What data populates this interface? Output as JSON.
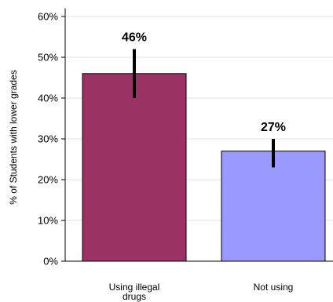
{
  "chart_data": {
    "type": "bar",
    "title": "",
    "xlabel": "",
    "ylabel": "% of Students with lower grades",
    "categories": [
      "Using illegal drugs",
      "Not using"
    ],
    "category_lines": [
      [
        "Using illegal",
        "drugs"
      ],
      [
        "Not using"
      ]
    ],
    "values": [
      46,
      27
    ],
    "data_labels": [
      "46%",
      "27%"
    ],
    "error_bars": [
      [
        40,
        52
      ],
      [
        23,
        30
      ]
    ],
    "ylim": [
      0,
      62
    ],
    "yticks": [
      0,
      10,
      20,
      30,
      40,
      50,
      60
    ],
    "ytick_labels": [
      "0%",
      "10%",
      "20%",
      "30%",
      "40%",
      "50%",
      "60%"
    ],
    "grid": true,
    "colors": [
      "#9b3264",
      "#9999ff"
    ],
    "bar_edge_color": "#000000",
    "error_bar_color": "#000000"
  }
}
